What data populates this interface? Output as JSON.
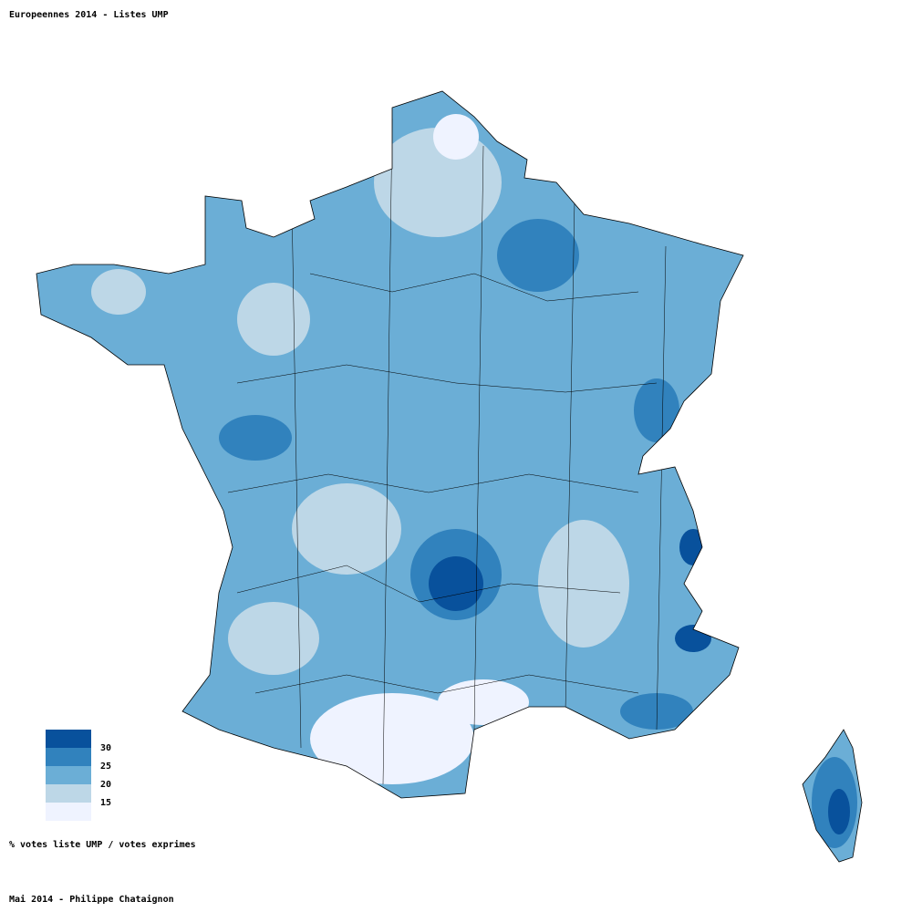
{
  "title": "Europeennes 2014 - Listes UMP",
  "legend": {
    "colors": [
      "#08519c",
      "#3182bd",
      "#6baed6",
      "#bdd7e7",
      "#eff3ff"
    ],
    "thresholds": [
      30,
      25,
      20,
      15
    ]
  },
  "caption": "% votes liste UMP / votes exprimes",
  "footer": "Mai 2014 - Philippe Chataignon"
}
